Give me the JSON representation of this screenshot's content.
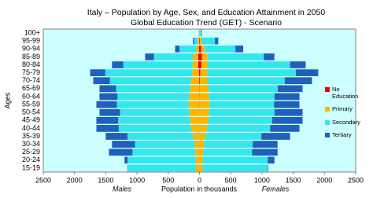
{
  "chart_data": {
    "type": "pyramid",
    "title": "Italy – Population by Age, Sex, and Education Attainment in 2050",
    "subtitle": "Global Education Trend (GET) - Scenario",
    "y_label": "Ages",
    "x_label": "Population in thousands",
    "left_label": "Males",
    "right_label": "Females",
    "categories": [
      "15-19",
      "20-24",
      "25-29",
      "30-34",
      "35-39",
      "40-44",
      "45-49",
      "50-54",
      "55-59",
      "60-64",
      "65-69",
      "70-74",
      "75-79",
      "80-84",
      "85-89",
      "90-94",
      "95-99",
      "100+"
    ],
    "series": [
      {
        "name": "No Education",
        "color": "#e60000",
        "males": [
          -2,
          -2,
          -2,
          -2,
          -2,
          -2,
          -2,
          -2,
          -3,
          -3,
          -3,
          -5,
          -8,
          -20,
          -20,
          -10,
          -3,
          -1
        ],
        "females": [
          2,
          2,
          2,
          2,
          2,
          2,
          2,
          2,
          3,
          3,
          4,
          6,
          12,
          30,
          40,
          25,
          8,
          2
        ]
      },
      {
        "name": "Primary",
        "color": "#ffb400",
        "males": [
          -60,
          -60,
          -70,
          -80,
          -100,
          -130,
          -150,
          -160,
          -170,
          -160,
          -150,
          -130,
          -110,
          -90,
          -80,
          -40,
          -20,
          -4
        ],
        "females": [
          50,
          50,
          60,
          70,
          90,
          120,
          140,
          150,
          160,
          150,
          140,
          120,
          110,
          100,
          90,
          60,
          30,
          6
        ]
      },
      {
        "name": "Secondary",
        "color": "#33e6f0",
        "males": [
          -1080,
          -1090,
          -1000,
          -950,
          -1050,
          -1160,
          -1150,
          -1110,
          -1150,
          -1150,
          -1180,
          -1300,
          -1390,
          -1110,
          -630,
          -270,
          -60,
          -5
        ],
        "females": [
          1040,
          1040,
          780,
          780,
          900,
          1010,
          1020,
          1050,
          1030,
          1050,
          1110,
          1240,
          1420,
          1320,
          900,
          490,
          210,
          27
        ]
      },
      {
        "name": "Tertiary",
        "color": "#1e5fc0",
        "males": [
          -8,
          -48,
          -378,
          -368,
          -348,
          -358,
          -348,
          -328,
          -327,
          -287,
          -267,
          -265,
          -242,
          -180,
          -140,
          -70,
          -20,
          -2
        ],
        "females": [
          8,
          108,
          408,
          398,
          458,
          468,
          488,
          448,
          407,
          397,
          396,
          434,
          358,
          250,
          170,
          125,
          52,
          5
        ]
      }
    ],
    "xlim": [
      -2500,
      2500
    ],
    "xticks": [
      {
        "value": -2500,
        "label": "2500"
      },
      {
        "value": -2000,
        "label": "2000"
      },
      {
        "value": -1500,
        "label": "1500"
      },
      {
        "value": -1000,
        "label": "1000"
      },
      {
        "value": -500,
        "label": "500"
      },
      0,
      500,
      1000,
      1500,
      2000,
      2500
    ],
    "background": "#ccffff"
  }
}
